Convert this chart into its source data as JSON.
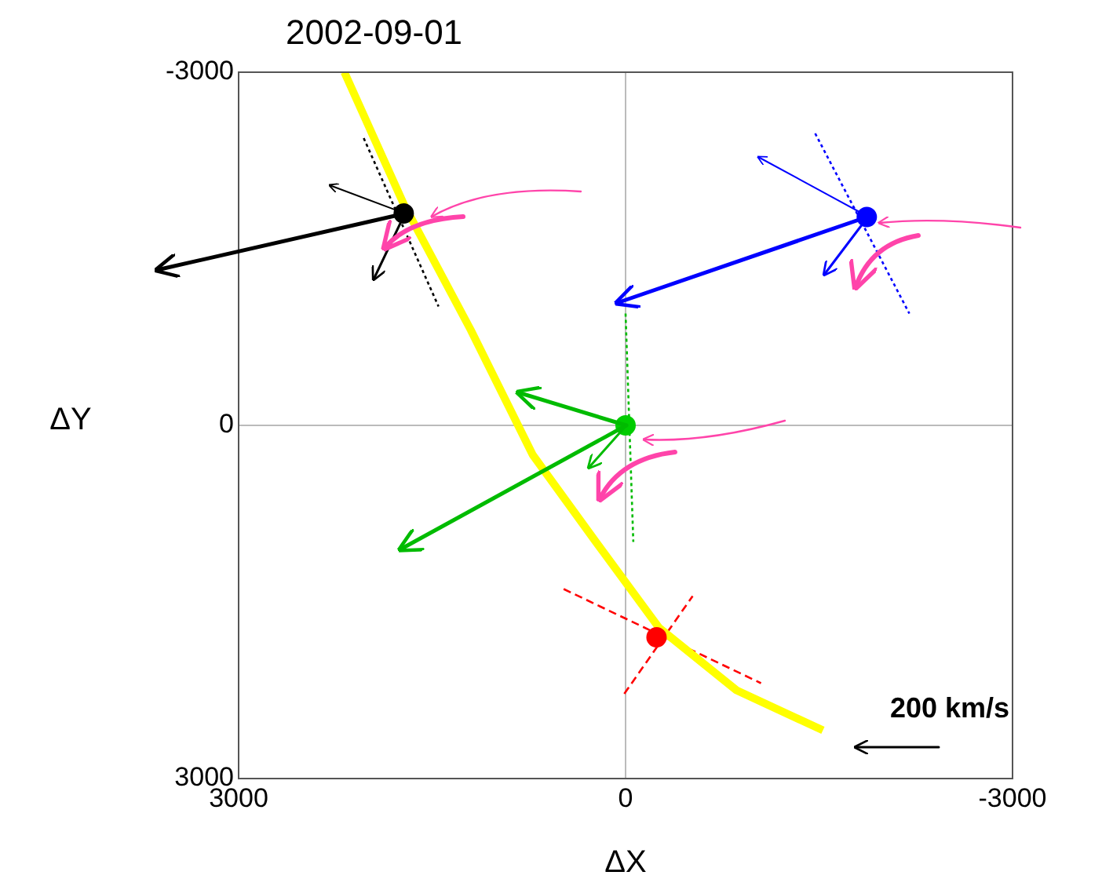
{
  "chart_data": {
    "type": "scatter",
    "title": "2002-09-01",
    "xlabel": "ΔX",
    "ylabel": "ΔY",
    "xlim": [
      3000,
      -3000
    ],
    "xticks": [
      3000,
      0,
      -3000
    ],
    "ylim": [
      3000,
      -3000
    ],
    "yticks": [
      -3000,
      0,
      3000
    ],
    "grid": true,
    "legend": false,
    "marker": "circle",
    "series": [
      {
        "type": "scatter",
        "x": [
          1720,
          -1870,
          0,
          -240
        ],
        "values": [
          -1800,
          -1770,
          0,
          1800
        ],
        "colors": [
          "#000000",
          "#0000ff",
          "#00cc00",
          "#ff0000"
        ]
      },
      {
        "type": "line",
        "color": "#ffff00",
        "marker": "none",
        "x": [
          2180,
          1720,
          1200,
          720,
          230,
          -260,
          -860,
          -1530
        ],
        "values": [
          -3000,
          -1880,
          -810,
          250,
          990,
          1720,
          2250,
          2590
        ]
      },
      {
        "type": "line",
        "color": "#000000",
        "marker": "none",
        "line_style": "dotted",
        "x": [
          2030,
          1450
        ],
        "values": [
          -2440,
          -1010
        ]
      },
      {
        "type": "line",
        "color": "#0000ff",
        "marker": "none",
        "line_style": "dotted",
        "x": [
          -1470,
          -2200
        ],
        "values": [
          -2480,
          -950
        ]
      },
      {
        "type": "line",
        "color": "#00bb00",
        "marker": "none",
        "line_style": "dotted",
        "x": [
          0,
          -60
        ],
        "values": [
          -950,
          990
        ]
      },
      {
        "type": "line",
        "color": "#ff0000",
        "marker": "none",
        "line_style": "dashed",
        "x": [
          480,
          -1050
        ],
        "values": [
          1390,
          2190
        ]
      },
      {
        "type": "line",
        "color": "#ff0000",
        "marker": "none",
        "line_style": "dashed",
        "x": [
          10,
          -520
        ],
        "values": [
          2280,
          1450
        ]
      }
    ],
    "annotations": [
      "200 km/s"
    ]
  }
}
